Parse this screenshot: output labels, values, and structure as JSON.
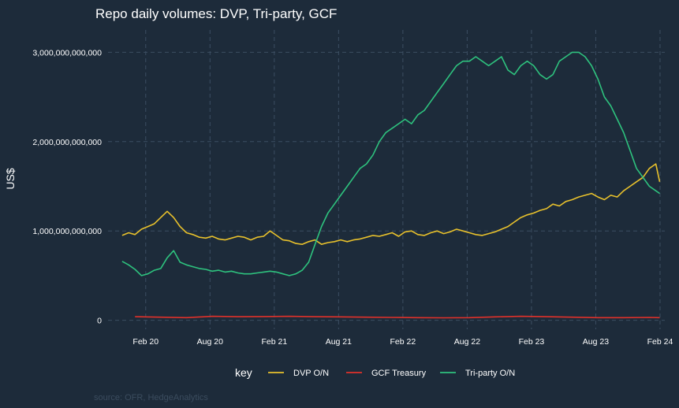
{
  "chart_data": {
    "type": "line",
    "title": "Repo daily volumes: DVP, Tri-party, GCF",
    "ylabel": "US$",
    "xlabel": "",
    "caption": "source: OFR, HedgeAnalytics",
    "ylim": [
      -100000000000,
      3250000000000
    ],
    "x_range": [
      2019.79,
      2024.12
    ],
    "grid": true,
    "y_ticks": [
      {
        "value": 0,
        "label": "0"
      },
      {
        "value": 1000000000000,
        "label": "1,000,000,000,000"
      },
      {
        "value": 2000000000000,
        "label": "2,000,000,000,000"
      },
      {
        "value": 3000000000000,
        "label": "3,000,000,000,000"
      }
    ],
    "x_ticks": [
      {
        "value": 2020.083,
        "label": "Feb 20"
      },
      {
        "value": 2020.583,
        "label": "Aug 20"
      },
      {
        "value": 2021.083,
        "label": "Feb 21"
      },
      {
        "value": 2021.583,
        "label": "Aug 21"
      },
      {
        "value": 2022.083,
        "label": "Feb 22"
      },
      {
        "value": 2022.583,
        "label": "Aug 22"
      },
      {
        "value": 2023.083,
        "label": "Feb 23"
      },
      {
        "value": 2023.583,
        "label": "Aug 23"
      },
      {
        "value": 2024.083,
        "label": "Feb 24"
      }
    ],
    "legend": {
      "title": "key",
      "position": "bottom"
    },
    "series": [
      {
        "name": "DVP O/N",
        "color": "#e8c12c",
        "x": [
          2019.9,
          2019.95,
          2020.0,
          2020.05,
          2020.1,
          2020.15,
          2020.2,
          2020.25,
          2020.3,
          2020.35,
          2020.4,
          2020.45,
          2020.5,
          2020.55,
          2020.6,
          2020.65,
          2020.7,
          2020.75,
          2020.8,
          2020.85,
          2020.9,
          2020.95,
          2021.0,
          2021.05,
          2021.1,
          2021.15,
          2021.2,
          2021.25,
          2021.3,
          2021.35,
          2021.4,
          2021.45,
          2021.5,
          2021.55,
          2021.6,
          2021.65,
          2021.7,
          2021.75,
          2021.8,
          2021.85,
          2021.9,
          2021.95,
          2022.0,
          2022.05,
          2022.1,
          2022.15,
          2022.2,
          2022.25,
          2022.3,
          2022.35,
          2022.4,
          2022.45,
          2022.5,
          2022.55,
          2022.6,
          2022.65,
          2022.7,
          2022.75,
          2022.8,
          2022.85,
          2022.9,
          2022.95,
          2023.0,
          2023.05,
          2023.1,
          2023.15,
          2023.2,
          2023.25,
          2023.3,
          2023.35,
          2023.4,
          2023.45,
          2023.5,
          2023.55,
          2023.6,
          2023.65,
          2023.7,
          2023.75,
          2023.8,
          2023.85,
          2023.9,
          2023.95,
          2024.0,
          2024.05,
          2024.08
        ],
        "values": [
          950000000000,
          980000000000,
          960000000000,
          1020000000000,
          1050000000000,
          1080000000000,
          1150000000000,
          1220000000000,
          1150000000000,
          1050000000000,
          980000000000,
          960000000000,
          930000000000,
          920000000000,
          940000000000,
          910000000000,
          900000000000,
          920000000000,
          940000000000,
          930000000000,
          900000000000,
          930000000000,
          940000000000,
          1000000000000,
          950000000000,
          900000000000,
          890000000000,
          860000000000,
          850000000000,
          880000000000,
          900000000000,
          850000000000,
          870000000000,
          880000000000,
          900000000000,
          880000000000,
          900000000000,
          910000000000,
          930000000000,
          950000000000,
          940000000000,
          960000000000,
          980000000000,
          940000000000,
          990000000000,
          1000000000000,
          960000000000,
          950000000000,
          980000000000,
          1000000000000,
          970000000000,
          990000000000,
          1020000000000,
          1000000000000,
          980000000000,
          960000000000,
          950000000000,
          970000000000,
          990000000000,
          1020000000000,
          1050000000000,
          1100000000000,
          1150000000000,
          1180000000000,
          1200000000000,
          1230000000000,
          1250000000000,
          1300000000000,
          1280000000000,
          1330000000000,
          1350000000000,
          1380000000000,
          1400000000000,
          1420000000000,
          1380000000000,
          1350000000000,
          1400000000000,
          1380000000000,
          1450000000000,
          1500000000000,
          1550000000000,
          1600000000000,
          1700000000000,
          1750000000000,
          1550000000000
        ]
      },
      {
        "name": "GCF Treasury",
        "color": "#e0312a",
        "x": [
          2020.0,
          2020.2,
          2020.4,
          2020.6,
          2020.8,
          2021.0,
          2021.2,
          2021.4,
          2021.6,
          2021.8,
          2022.0,
          2022.2,
          2022.4,
          2022.6,
          2022.8,
          2023.0,
          2023.2,
          2023.4,
          2023.6,
          2023.8,
          2024.0,
          2024.08
        ],
        "values": [
          40000000000,
          35000000000,
          30000000000,
          45000000000,
          40000000000,
          42000000000,
          45000000000,
          40000000000,
          38000000000,
          35000000000,
          32000000000,
          30000000000,
          28000000000,
          30000000000,
          38000000000,
          45000000000,
          40000000000,
          35000000000,
          30000000000,
          30000000000,
          32000000000,
          30000000000
        ]
      },
      {
        "name": "Tri-party O/N",
        "color": "#2ec27e",
        "x": [
          2019.9,
          2019.95,
          2020.0,
          2020.05,
          2020.1,
          2020.15,
          2020.2,
          2020.25,
          2020.3,
          2020.35,
          2020.4,
          2020.45,
          2020.5,
          2020.55,
          2020.6,
          2020.65,
          2020.7,
          2020.75,
          2020.8,
          2020.85,
          2020.9,
          2020.95,
          2021.0,
          2021.05,
          2021.1,
          2021.15,
          2021.2,
          2021.25,
          2021.3,
          2021.35,
          2021.4,
          2021.45,
          2021.5,
          2021.55,
          2021.6,
          2021.65,
          2021.7,
          2021.75,
          2021.8,
          2021.85,
          2021.9,
          2021.95,
          2022.0,
          2022.05,
          2022.1,
          2022.15,
          2022.2,
          2022.25,
          2022.3,
          2022.35,
          2022.4,
          2022.45,
          2022.5,
          2022.55,
          2022.6,
          2022.65,
          2022.7,
          2022.75,
          2022.8,
          2022.85,
          2022.9,
          2022.95,
          2023.0,
          2023.05,
          2023.1,
          2023.15,
          2023.2,
          2023.25,
          2023.3,
          2023.35,
          2023.4,
          2023.45,
          2023.5,
          2023.55,
          2023.6,
          2023.65,
          2023.7,
          2023.75,
          2023.8,
          2023.85,
          2023.9,
          2023.95,
          2024.0,
          2024.05,
          2024.08
        ],
        "values": [
          660000000000,
          620000000000,
          570000000000,
          500000000000,
          520000000000,
          560000000000,
          580000000000,
          700000000000,
          780000000000,
          650000000000,
          620000000000,
          600000000000,
          580000000000,
          570000000000,
          550000000000,
          560000000000,
          540000000000,
          550000000000,
          530000000000,
          520000000000,
          520000000000,
          530000000000,
          540000000000,
          550000000000,
          540000000000,
          520000000000,
          500000000000,
          520000000000,
          560000000000,
          650000000000,
          850000000000,
          1050000000000,
          1200000000000,
          1300000000000,
          1400000000000,
          1500000000000,
          1600000000000,
          1700000000000,
          1750000000000,
          1850000000000,
          2000000000000,
          2100000000000,
          2150000000000,
          2200000000000,
          2250000000000,
          2200000000000,
          2300000000000,
          2350000000000,
          2450000000000,
          2550000000000,
          2650000000000,
          2750000000000,
          2850000000000,
          2900000000000,
          2900000000000,
          2950000000000,
          2900000000000,
          2850000000000,
          2900000000000,
          2950000000000,
          2800000000000,
          2750000000000,
          2850000000000,
          2900000000000,
          2850000000000,
          2750000000000,
          2700000000000,
          2750000000000,
          2900000000000,
          2950000000000,
          3000000000000,
          3000000000000,
          2950000000000,
          2850000000000,
          2700000000000,
          2500000000000,
          2400000000000,
          2250000000000,
          2100000000000,
          1900000000000,
          1700000000000,
          1600000000000,
          1500000000000,
          1450000000000,
          1420000000000
        ]
      }
    ]
  }
}
